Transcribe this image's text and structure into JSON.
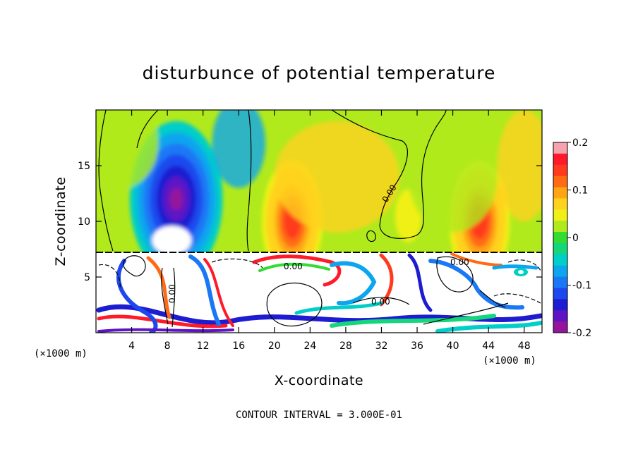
{
  "chart_data": {
    "type": "heatmap",
    "title": "disturbunce of potential temperature",
    "xlabel": "X-coordinate",
    "ylabel": "Z-coordinate",
    "x_unit_label_left": "(×1000 m)",
    "x_unit_label_right": "(×1000 m)",
    "xlim": [
      0,
      50
    ],
    "ylim": [
      0,
      20
    ],
    "x_ticks": [
      4,
      8,
      12,
      16,
      20,
      24,
      28,
      32,
      36,
      40,
      44,
      48
    ],
    "y_ticks": [
      5,
      10,
      15
    ],
    "colorbar": {
      "range": [
        -0.2,
        0.2
      ],
      "tick_values": [
        0.2,
        0.1,
        0,
        -0.1,
        -0.2
      ],
      "tick_labels": [
        "0.2",
        "0.1",
        "0",
        "-0.1",
        "-0.2"
      ],
      "colors": [
        "#f5a3ad",
        "#ff1a2a",
        "#ff3a1e",
        "#ff6a14",
        "#ffa514",
        "#ffd21e",
        "#f0f018",
        "#b0ea1c",
        "#32dc32",
        "#16d67c",
        "#00cec8",
        "#0ca6ee",
        "#1a78f6",
        "#1c48ee",
        "#1e1cd0",
        "#5e14c4",
        "#94149c"
      ]
    },
    "contour_label": "0.00",
    "contour_interval_text": "CONTOUR INTERVAL = 3.000E-01",
    "features": [
      {
        "name": "cold anomaly",
        "x": 9,
        "z": 12,
        "value": -0.2
      },
      {
        "name": "warm anomaly",
        "x": 22,
        "z": 10,
        "value": 0.15
      },
      {
        "name": "warm anomaly",
        "x": 43,
        "z": 10,
        "value": 0.15
      },
      {
        "name": "warm anomaly",
        "x": 35,
        "z": 10.5,
        "value": 0.05
      }
    ],
    "grid": false
  }
}
